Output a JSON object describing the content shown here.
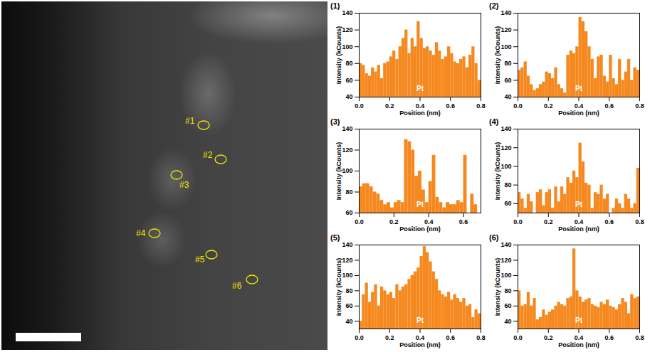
{
  "image": {
    "labels": [
      "#1",
      "#2",
      "#3",
      "#4",
      "#5",
      "#6"
    ]
  },
  "chart_data": [
    {
      "type": "histogram",
      "title": "(1)",
      "x_label": "Position (nm)",
      "y_label": "Intensity (kCounts)",
      "annotations": [
        "Pt"
      ],
      "color": "#f5891f",
      "bins": [
        0,
        0.02,
        0.04,
        0.06,
        0.08,
        0.1,
        0.12,
        0.14,
        0.16,
        0.18,
        0.2,
        0.22,
        0.24,
        0.26,
        0.28,
        0.3,
        0.32,
        0.34,
        0.36,
        0.38,
        0.4,
        0.42,
        0.44,
        0.46,
        0.48,
        0.5,
        0.52,
        0.54,
        0.56,
        0.58,
        0.6,
        0.62,
        0.64,
        0.66,
        0.68,
        0.7,
        0.72,
        0.74,
        0.76,
        0.78,
        0.8
      ],
      "values": [
        80,
        78,
        68,
        65,
        75,
        70,
        78,
        62,
        80,
        82,
        88,
        95,
        85,
        100,
        110,
        120,
        92,
        110,
        100,
        130,
        110,
        98,
        100,
        95,
        90,
        105,
        95,
        85,
        88,
        100,
        92,
        82,
        80,
        85,
        88,
        75,
        90,
        100,
        80,
        60
      ],
      "xlim": [
        0,
        0.8
      ],
      "xticks": [
        {
          "value": 0,
          "label": "0.0"
        },
        0.2,
        0.4,
        0.6,
        0.8
      ],
      "ylim": [
        40,
        140
      ],
      "yticks": [
        40,
        60,
        80,
        100,
        120,
        140
      ]
    },
    {
      "type": "histogram",
      "title": "(2)",
      "x_label": "Position (nm)",
      "y_label": "Intensity (kCounts)",
      "annotations": [
        "Pt"
      ],
      "color": "#f5891f",
      "bins": [
        0,
        0.02,
        0.04,
        0.06,
        0.08,
        0.1,
        0.12,
        0.14,
        0.16,
        0.18,
        0.2,
        0.22,
        0.24,
        0.26,
        0.28,
        0.3,
        0.32,
        0.34,
        0.36,
        0.38,
        0.4,
        0.42,
        0.44,
        0.46,
        0.48,
        0.5,
        0.52,
        0.54,
        0.56,
        0.58,
        0.6,
        0.62,
        0.64,
        0.66,
        0.68,
        0.7,
        0.72,
        0.74,
        0.76,
        0.78,
        0.8
      ],
      "values": [
        72,
        75,
        82,
        65,
        55,
        48,
        50,
        55,
        58,
        70,
        68,
        62,
        75,
        55,
        50,
        45,
        90,
        95,
        92,
        100,
        135,
        130,
        118,
        100,
        85,
        62,
        88,
        90,
        65,
        58,
        90,
        62,
        55,
        85,
        60,
        70,
        85,
        60,
        75,
        72
      ],
      "xlim": [
        0,
        0.8
      ],
      "xticks": [
        {
          "value": 0,
          "label": "0.0"
        },
        0.2,
        0.4,
        0.6,
        0.8
      ],
      "ylim": [
        40,
        140
      ],
      "yticks": [
        40,
        60,
        80,
        100,
        120,
        140
      ]
    },
    {
      "type": "histogram",
      "title": "(3)",
      "x_label": "Position (nm)",
      "y_label": "Intensity (kCounts)",
      "annotations": [
        "Pt"
      ],
      "color": "#f5891f",
      "bins": [
        0,
        0.02,
        0.04,
        0.06,
        0.08,
        0.1,
        0.12,
        0.14,
        0.16,
        0.18,
        0.2,
        0.22,
        0.24,
        0.26,
        0.28,
        0.3,
        0.32,
        0.34,
        0.36,
        0.38,
        0.4,
        0.42,
        0.44,
        0.46,
        0.48,
        0.5,
        0.52,
        0.54,
        0.56,
        0.58,
        0.6,
        0.62,
        0.64,
        0.66,
        0.68
      ],
      "values": [
        85,
        88,
        88,
        85,
        80,
        78,
        72,
        68,
        70,
        65,
        70,
        72,
        70,
        130,
        128,
        120,
        95,
        100,
        82,
        70,
        90,
        115,
        75,
        70,
        65,
        70,
        68,
        68,
        72,
        70,
        115,
        60,
        78,
        68
      ],
      "xlim": [
        0,
        0.7
      ],
      "xticks": [
        {
          "value": 0,
          "label": "0.0"
        },
        0.2,
        0.4,
        0.6
      ],
      "ylim": [
        60,
        140
      ],
      "yticks": [
        60,
        80,
        100,
        120,
        140
      ]
    },
    {
      "type": "histogram",
      "title": "(4)",
      "x_label": "Position (nm)",
      "y_label": "Intensity (kCounts)",
      "annotations": [
        "Pt"
      ],
      "color": "#f5891f",
      "bins": [
        0,
        0.02,
        0.04,
        0.06,
        0.08,
        0.1,
        0.12,
        0.14,
        0.16,
        0.18,
        0.2,
        0.22,
        0.24,
        0.26,
        0.28,
        0.3,
        0.32,
        0.34,
        0.36,
        0.38,
        0.4,
        0.42,
        0.44,
        0.46,
        0.48,
        0.5,
        0.52,
        0.54,
        0.56,
        0.58,
        0.6,
        0.62,
        0.64,
        0.66,
        0.68,
        0.7,
        0.72,
        0.74,
        0.76,
        0.78,
        0.8
      ],
      "values": [
        72,
        65,
        55,
        70,
        62,
        50,
        72,
        75,
        58,
        72,
        75,
        55,
        78,
        62,
        78,
        70,
        88,
        82,
        95,
        88,
        125,
        105,
        82,
        80,
        55,
        72,
        70,
        80,
        65,
        70,
        50,
        55,
        65,
        60,
        55,
        70,
        65,
        55,
        60,
        98
      ],
      "xlim": [
        0,
        0.8
      ],
      "xticks": [
        {
          "value": 0,
          "label": "0.0"
        },
        0.2,
        0.4,
        0.6,
        0.8
      ],
      "ylim": [
        50,
        140
      ],
      "yticks": [
        60,
        80,
        100,
        120,
        140
      ]
    },
    {
      "type": "histogram",
      "title": "(5)",
      "x_label": "Position (nm)",
      "y_label": "Intensity (kCounts)",
      "annotations": [
        "Pt"
      ],
      "color": "#f5891f",
      "bins": [
        0,
        0.02,
        0.04,
        0.06,
        0.08,
        0.1,
        0.12,
        0.14,
        0.16,
        0.18,
        0.2,
        0.22,
        0.24,
        0.26,
        0.28,
        0.3,
        0.32,
        0.34,
        0.36,
        0.38,
        0.4,
        0.42,
        0.44,
        0.46,
        0.48,
        0.5,
        0.52,
        0.54,
        0.56,
        0.58,
        0.6,
        0.62,
        0.64,
        0.66,
        0.68,
        0.7,
        0.72,
        0.74,
        0.76,
        0.78,
        0.8
      ],
      "values": [
        40,
        75,
        90,
        65,
        78,
        88,
        60,
        85,
        80,
        75,
        78,
        70,
        88,
        80,
        85,
        88,
        95,
        100,
        105,
        110,
        125,
        138,
        130,
        118,
        105,
        95,
        80,
        75,
        72,
        78,
        68,
        75,
        70,
        65,
        70,
        60,
        62,
        45,
        55,
        50
      ],
      "xlim": [
        0,
        0.8
      ],
      "xticks": [
        {
          "value": 0,
          "label": "0.0"
        },
        0.2,
        0.4,
        0.6,
        0.8
      ],
      "ylim": [
        30,
        140
      ],
      "yticks": [
        40,
        60,
        80,
        100,
        120,
        140
      ]
    },
    {
      "type": "histogram",
      "title": "(6)",
      "x_label": "Position (nm)",
      "y_label": "Intensity (kCounts)",
      "annotations": [
        "Pt"
      ],
      "color": "#f5891f",
      "bins": [
        0,
        0.02,
        0.04,
        0.06,
        0.08,
        0.1,
        0.12,
        0.14,
        0.16,
        0.18,
        0.2,
        0.22,
        0.24,
        0.26,
        0.28,
        0.3,
        0.32,
        0.34,
        0.36,
        0.38,
        0.4,
        0.42,
        0.44,
        0.46,
        0.48,
        0.5,
        0.52,
        0.54,
        0.56,
        0.58,
        0.6,
        0.62,
        0.64,
        0.66,
        0.68,
        0.7,
        0.72,
        0.74,
        0.76,
        0.78,
        0.8
      ],
      "values": [
        80,
        60,
        62,
        78,
        60,
        70,
        42,
        45,
        55,
        48,
        52,
        55,
        60,
        65,
        62,
        60,
        70,
        72,
        135,
        80,
        72,
        65,
        68,
        70,
        62,
        60,
        58,
        65,
        62,
        68,
        60,
        58,
        55,
        62,
        70,
        65,
        50,
        75,
        70,
        72
      ],
      "xlim": [
        0,
        0.8
      ],
      "xticks": [
        {
          "value": 0,
          "label": "0.0"
        },
        0.2,
        0.4,
        0.6,
        0.8
      ],
      "ylim": [
        30,
        140
      ],
      "yticks": [
        40,
        60,
        80,
        100,
        120,
        140
      ]
    }
  ]
}
